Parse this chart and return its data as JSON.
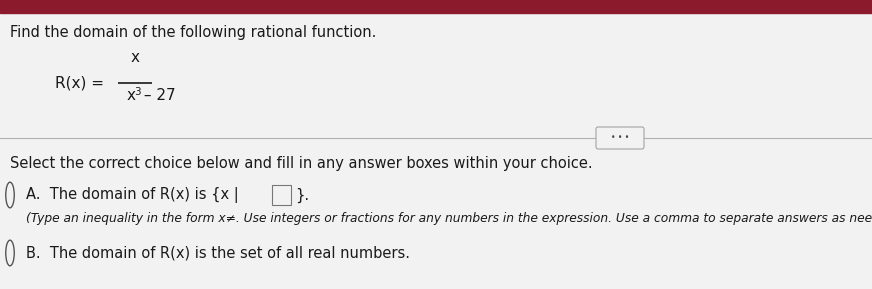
{
  "bg_color": "#f2f2f2",
  "top_bar_color": "#8B1A2D",
  "title_text": "Find the domain of the following rational function.",
  "numerator": "x",
  "denominator_base": "x",
  "denominator_exp": "3",
  "denominator_rest": " – 27",
  "select_text": "Select the correct choice below and fill in any answer boxes within your choice.",
  "choice_a_main": "A.  The domain of R(x) is {x |",
  "choice_a_end": "}.",
  "choice_a_sub": "(Type an inequality in the form x≠. Use integers or fractions for any numbers in the expression. Use a comma to separate answers as need",
  "choice_b_text": "B.  The domain of R(x) is the set of all real numbers.",
  "font_color": "#1a1a1a",
  "line_color": "#b0b0b0",
  "dots_text": "• • •"
}
